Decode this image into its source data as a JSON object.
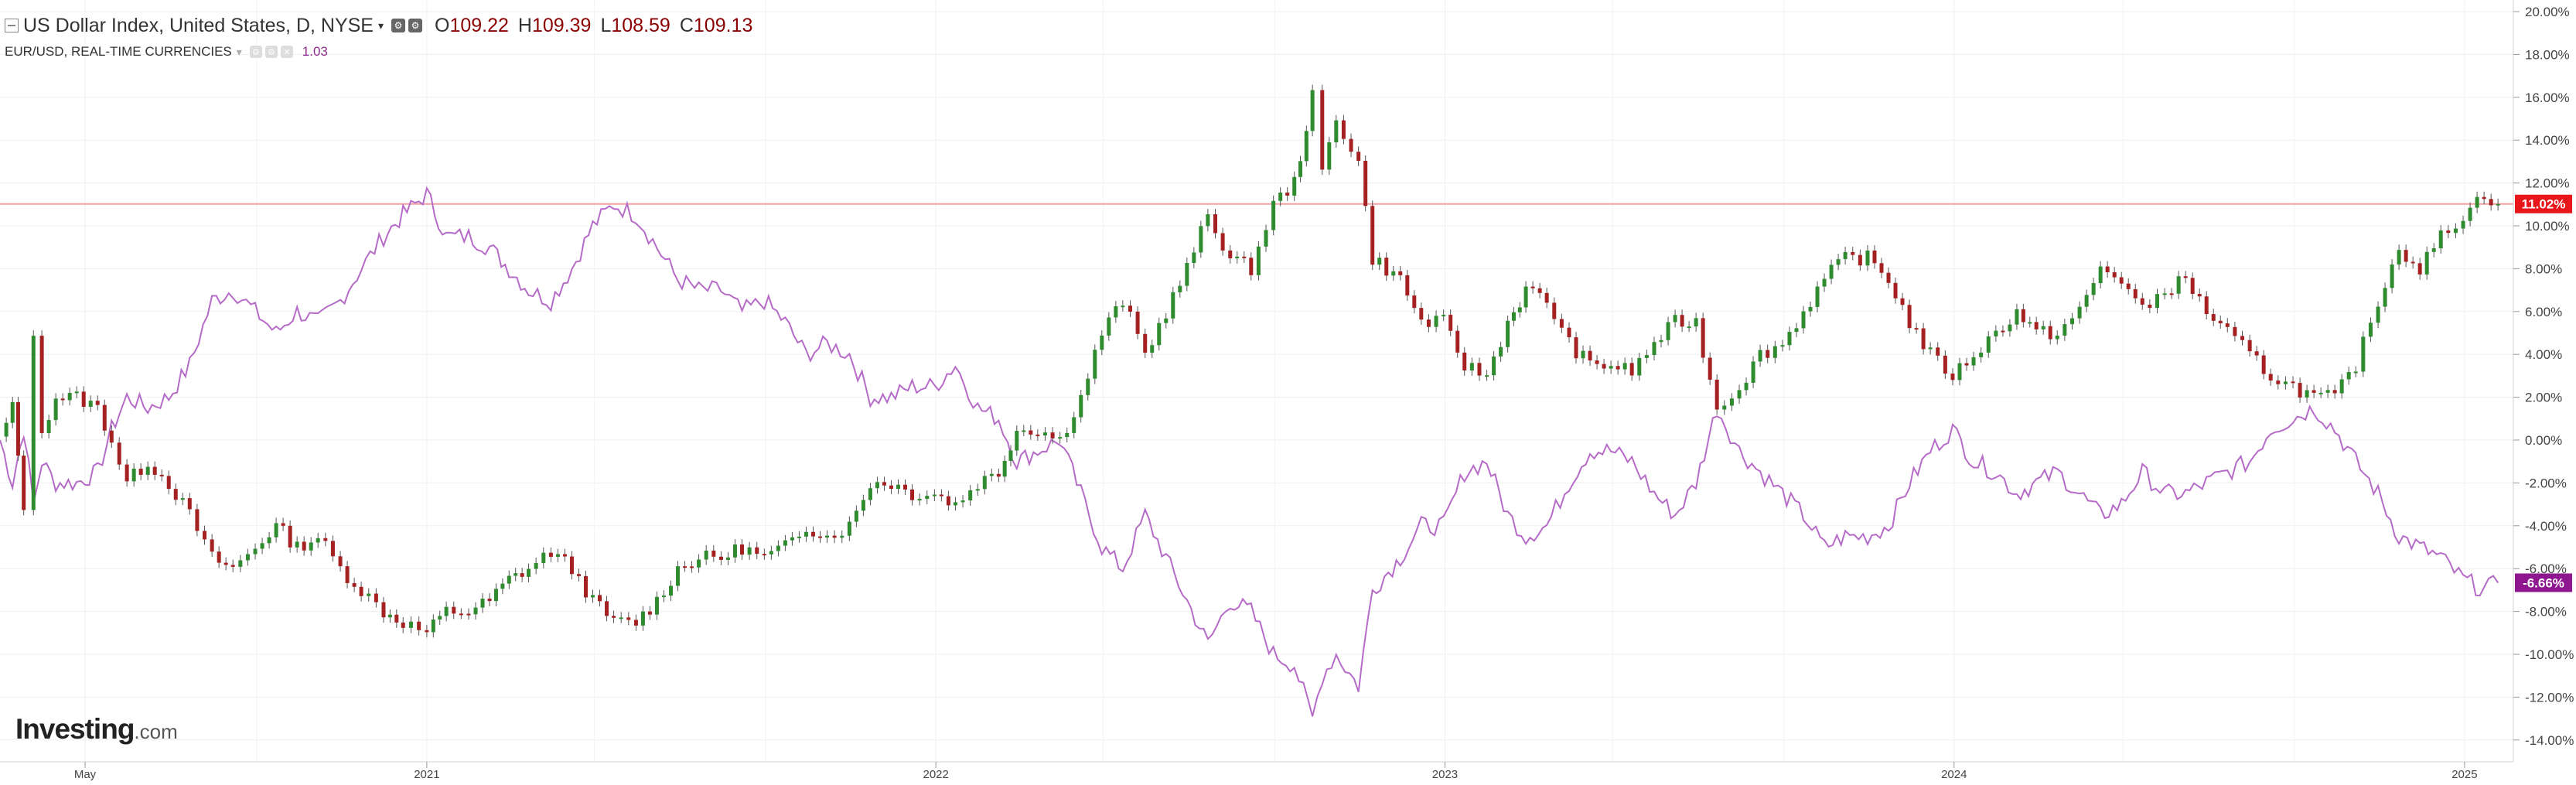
{
  "header": {
    "title": "US Dollar Index, United States, D, NYSE",
    "open_label": "O",
    "open": "109.22",
    "high_label": "H",
    "high": "109.39",
    "low_label": "L",
    "low": "108.59",
    "close_label": "C",
    "close": "109.13",
    "caret": "▾"
  },
  "sub_header": {
    "title": "EUR/USD, REAL-TIME CURRENCIES",
    "value": "1.03",
    "caret": "▾"
  },
  "logo": {
    "main": "Investing",
    "sub": ".com"
  },
  "chart_data": {
    "type": "line",
    "y_axis": {
      "position": "right",
      "unit": "%",
      "ylim": [
        -15,
        20
      ],
      "ticks": [
        20,
        18,
        16,
        14,
        12,
        10,
        8,
        6,
        4,
        2,
        0,
        -2,
        -4,
        -6,
        -8,
        -10,
        -12,
        -14
      ],
      "tick_labels": [
        "20.00%",
        "18.00%",
        "16.00%",
        "14.00%",
        "12.00%",
        "10.00%",
        "8.00%",
        "6.00%",
        "4.00%",
        "2.00%",
        "0.00%",
        "-2.00%",
        "-4.00%",
        "-6.00%",
        "-8.00%",
        "-10.00%",
        "-12.00%",
        "-14.00%"
      ]
    },
    "x_axis": {
      "tick_labels": [
        {
          "date": "2020-05-01",
          "label": "May"
        },
        {
          "date": "2021-01-01",
          "label": "2021"
        },
        {
          "date": "2022-01-01",
          "label": "2022"
        },
        {
          "date": "2023-01-01",
          "label": "2023"
        },
        {
          "date": "2024-01-01",
          "label": "2024"
        },
        {
          "date": "2025-01-01",
          "label": "2025"
        }
      ],
      "xlim": [
        "2020-03-01",
        "2025-02-05"
      ],
      "minor_gridlines": [
        "2020-09-01",
        "2021-05-01",
        "2021-09-01",
        "2022-05-01",
        "2022-09-01",
        "2023-05-01",
        "2023-09-01",
        "2024-05-01",
        "2024-09-01"
      ]
    },
    "grid": true,
    "series": [
      {
        "name": "US Dollar Index, United States, D, NYSE",
        "style": "candlestick",
        "up_color": "#2e8b2e",
        "down_color": "#a52020",
        "last_value_label": "11.02%",
        "last_value": 11.02,
        "badge_color": "#e8161a",
        "points": [
          [
            "2020-03-01",
            0
          ],
          [
            "2020-03-10",
            1.5
          ],
          [
            "2020-03-18",
            -3.0
          ],
          [
            "2020-03-25",
            4.6
          ],
          [
            "2020-03-31",
            0.5
          ],
          [
            "2020-04-10",
            2.0
          ],
          [
            "2020-04-25",
            2.0
          ],
          [
            "2020-05-10",
            1.5
          ],
          [
            "2020-05-20",
            0
          ],
          [
            "2020-05-31",
            -2.0
          ],
          [
            "2020-06-15",
            -1.0
          ],
          [
            "2020-06-30",
            -2.0
          ],
          [
            "2020-07-15",
            -3.5
          ],
          [
            "2020-07-31",
            -5.5
          ],
          [
            "2020-08-15",
            -6.0
          ],
          [
            "2020-08-31",
            -5.0
          ],
          [
            "2020-09-15",
            -4.0
          ],
          [
            "2020-09-30",
            -5.0
          ],
          [
            "2020-10-15",
            -4.5
          ],
          [
            "2020-10-31",
            -6.0
          ],
          [
            "2020-11-15",
            -7.0
          ],
          [
            "2020-12-01",
            -8.0
          ],
          [
            "2020-12-15",
            -8.5
          ],
          [
            "2021-01-01",
            -9.0
          ],
          [
            "2021-01-15",
            -8.0
          ],
          [
            "2021-01-31",
            -8.0
          ],
          [
            "2021-02-15",
            -7.5
          ],
          [
            "2021-03-01",
            -6.5
          ],
          [
            "2021-03-15",
            -6.0
          ],
          [
            "2021-03-31",
            -5.2
          ],
          [
            "2021-04-15",
            -6.0
          ],
          [
            "2021-04-30",
            -7.5
          ],
          [
            "2021-05-15",
            -8.5
          ],
          [
            "2021-05-31",
            -8.5
          ],
          [
            "2021-06-15",
            -7.5
          ],
          [
            "2021-06-30",
            -6.0
          ],
          [
            "2021-07-15",
            -5.5
          ],
          [
            "2021-07-31",
            -5.5
          ],
          [
            "2021-08-15",
            -5.0
          ],
          [
            "2021-08-31",
            -5.5
          ],
          [
            "2021-09-15",
            -5.0
          ],
          [
            "2021-09-30",
            -4.0
          ],
          [
            "2021-10-15",
            -4.5
          ],
          [
            "2021-10-31",
            -4.0
          ],
          [
            "2021-11-15",
            -2.0
          ],
          [
            "2021-11-30",
            -2.0
          ],
          [
            "2021-12-15",
            -2.5
          ],
          [
            "2021-12-31",
            -2.5
          ],
          [
            "2022-01-15",
            -3.0
          ],
          [
            "2022-01-31",
            -2.0
          ],
          [
            "2022-02-15",
            -1.5
          ],
          [
            "2022-02-28",
            0.5
          ],
          [
            "2022-03-15",
            0.5
          ],
          [
            "2022-03-31",
            0
          ],
          [
            "2022-04-15",
            2.0
          ],
          [
            "2022-04-30",
            5.0
          ],
          [
            "2022-05-15",
            6.5
          ],
          [
            "2022-05-31",
            4.0
          ],
          [
            "2022-06-15",
            6.0
          ],
          [
            "2022-06-30",
            8.0
          ],
          [
            "2022-07-15",
            10.5
          ],
          [
            "2022-07-31",
            8.5
          ],
          [
            "2022-08-15",
            8.0
          ],
          [
            "2022-08-31",
            11.0
          ],
          [
            "2022-09-15",
            12.0
          ],
          [
            "2022-09-28",
            16.0
          ],
          [
            "2022-10-05",
            12.5
          ],
          [
            "2022-10-15",
            15.0
          ],
          [
            "2022-10-31",
            13.0
          ],
          [
            "2022-11-10",
            8.5
          ],
          [
            "2022-11-30",
            7.5
          ],
          [
            "2022-12-15",
            5.5
          ],
          [
            "2022-12-31",
            5.5
          ],
          [
            "2023-01-15",
            3.5
          ],
          [
            "2023-01-31",
            3.0
          ],
          [
            "2023-02-15",
            5.5
          ],
          [
            "2023-02-28",
            7.0
          ],
          [
            "2023-03-15",
            6.5
          ],
          [
            "2023-03-31",
            4.5
          ],
          [
            "2023-04-15",
            3.5
          ],
          [
            "2023-04-30",
            3.5
          ],
          [
            "2023-05-15",
            3.2
          ],
          [
            "2023-05-31",
            4.5
          ],
          [
            "2023-06-15",
            5.5
          ],
          [
            "2023-06-30",
            5.5
          ],
          [
            "2023-07-15",
            1.5
          ],
          [
            "2023-07-31",
            2.5
          ],
          [
            "2023-08-15",
            4.0
          ],
          [
            "2023-08-31",
            4.5
          ],
          [
            "2023-09-15",
            6.0
          ],
          [
            "2023-09-30",
            7.5
          ],
          [
            "2023-10-15",
            8.5
          ],
          [
            "2023-10-31",
            8.5
          ],
          [
            "2023-11-15",
            7.5
          ],
          [
            "2023-11-30",
            5.5
          ],
          [
            "2023-12-15",
            4.0
          ],
          [
            "2023-12-31",
            3.0
          ],
          [
            "2024-01-15",
            4.0
          ],
          [
            "2024-01-31",
            5.0
          ],
          [
            "2024-02-15",
            6.0
          ],
          [
            "2024-02-29",
            5.0
          ],
          [
            "2024-03-15",
            5.0
          ],
          [
            "2024-03-31",
            6.0
          ],
          [
            "2024-04-15",
            8.0
          ],
          [
            "2024-04-30",
            7.5
          ],
          [
            "2024-05-15",
            6.0
          ],
          [
            "2024-05-31",
            7.0
          ],
          [
            "2024-06-15",
            7.5
          ],
          [
            "2024-06-30",
            6.0
          ],
          [
            "2024-07-15",
            5.0
          ],
          [
            "2024-07-31",
            4.0
          ],
          [
            "2024-08-15",
            3.0
          ],
          [
            "2024-08-31",
            2.5
          ],
          [
            "2024-09-15",
            2.0
          ],
          [
            "2024-09-30",
            2.0
          ],
          [
            "2024-10-15",
            3.5
          ],
          [
            "2024-10-31",
            6.5
          ],
          [
            "2024-11-15",
            9.0
          ],
          [
            "2024-11-30",
            8.0
          ],
          [
            "2024-12-15",
            9.5
          ],
          [
            "2024-12-31",
            10.5
          ],
          [
            "2025-01-15",
            11.5
          ],
          [
            "2025-01-25",
            11.02
          ]
        ]
      },
      {
        "name": "EUR/USD, REAL-TIME CURRENCIES",
        "style": "line",
        "color": "#b56bc7",
        "last_value_label": "-6.66%",
        "last_value": -6.66,
        "badge_color": "#8e168e",
        "points": [
          [
            "2020-03-01",
            0
          ],
          [
            "2020-03-10",
            -2.0
          ],
          [
            "2020-03-18",
            0.5
          ],
          [
            "2020-03-25",
            -3.0
          ],
          [
            "2020-03-31",
            -1.0
          ],
          [
            "2020-04-10",
            -2.0
          ],
          [
            "2020-04-25",
            -2.0
          ],
          [
            "2020-05-10",
            -1.5
          ],
          [
            "2020-05-20",
            0.5
          ],
          [
            "2020-05-31",
            2.0
          ],
          [
            "2020-06-15",
            1.5
          ],
          [
            "2020-06-30",
            2.0
          ],
          [
            "2020-07-15",
            3.5
          ],
          [
            "2020-07-31",
            6.5
          ],
          [
            "2020-08-15",
            7.0
          ],
          [
            "2020-08-31",
            6.0
          ],
          [
            "2020-09-15",
            5.0
          ],
          [
            "2020-09-30",
            6.0
          ],
          [
            "2020-10-15",
            5.5
          ],
          [
            "2020-10-31",
            6.5
          ],
          [
            "2020-11-15",
            8.0
          ],
          [
            "2020-12-01",
            9.5
          ],
          [
            "2020-12-15",
            10.5
          ],
          [
            "2021-01-01",
            11.5
          ],
          [
            "2021-01-15",
            9.5
          ],
          [
            "2021-01-31",
            9.5
          ],
          [
            "2021-02-15",
            9.0
          ],
          [
            "2021-03-01",
            8.0
          ],
          [
            "2021-03-15",
            7.0
          ],
          [
            "2021-03-31",
            6.5
          ],
          [
            "2021-04-15",
            8.0
          ],
          [
            "2021-04-30",
            10.0
          ],
          [
            "2021-05-15",
            11.0
          ],
          [
            "2021-05-31",
            10.5
          ],
          [
            "2021-06-15",
            9.0
          ],
          [
            "2021-06-30",
            7.5
          ],
          [
            "2021-07-15",
            7.0
          ],
          [
            "2021-07-31",
            7.0
          ],
          [
            "2021-08-15",
            6.0
          ],
          [
            "2021-08-31",
            6.5
          ],
          [
            "2021-09-15",
            5.5
          ],
          [
            "2021-09-30",
            4.0
          ],
          [
            "2021-10-15",
            4.5
          ],
          [
            "2021-10-31",
            4.0
          ],
          [
            "2021-11-15",
            2.0
          ],
          [
            "2021-11-30",
            2.0
          ],
          [
            "2021-12-15",
            2.5
          ],
          [
            "2021-12-31",
            2.5
          ],
          [
            "2022-01-15",
            3.5
          ],
          [
            "2022-01-31",
            1.5
          ],
          [
            "2022-02-15",
            1.0
          ],
          [
            "2022-02-28",
            -1.0
          ],
          [
            "2022-03-15",
            -0.5
          ],
          [
            "2022-03-31",
            0
          ],
          [
            "2022-04-15",
            -2.5
          ],
          [
            "2022-04-30",
            -5.0
          ],
          [
            "2022-05-15",
            -6.0
          ],
          [
            "2022-05-31",
            -3.5
          ],
          [
            "2022-06-15",
            -5.5
          ],
          [
            "2022-06-30",
            -7.5
          ],
          [
            "2022-07-15",
            -9.5
          ],
          [
            "2022-07-31",
            -7.5
          ],
          [
            "2022-08-15",
            -8.0
          ],
          [
            "2022-08-31",
            -10.0
          ],
          [
            "2022-09-15",
            -10.5
          ],
          [
            "2022-09-28",
            -13.0
          ],
          [
            "2022-10-05",
            -11.0
          ],
          [
            "2022-10-15",
            -10.0
          ],
          [
            "2022-10-31",
            -11.5
          ],
          [
            "2022-11-10",
            -7.0
          ],
          [
            "2022-11-30",
            -5.5
          ],
          [
            "2022-12-15",
            -4.0
          ],
          [
            "2022-12-31",
            -4.0
          ],
          [
            "2023-01-15",
            -1.5
          ],
          [
            "2023-01-31",
            -1.0
          ],
          [
            "2023-02-15",
            -3.5
          ],
          [
            "2023-02-28",
            -4.5
          ],
          [
            "2023-03-15",
            -4.0
          ],
          [
            "2023-03-31",
            -2.0
          ],
          [
            "2023-04-15",
            -0.5
          ],
          [
            "2023-04-30",
            -0.5
          ],
          [
            "2023-05-15",
            -1.0
          ],
          [
            "2023-05-31",
            -2.5
          ],
          [
            "2023-06-15",
            -3.5
          ],
          [
            "2023-06-30",
            -2.0
          ],
          [
            "2023-07-15",
            1.5
          ],
          [
            "2023-07-31",
            -0.5
          ],
          [
            "2023-08-15",
            -1.5
          ],
          [
            "2023-08-31",
            -2.5
          ],
          [
            "2023-09-15",
            -3.5
          ],
          [
            "2023-09-30",
            -5.0
          ],
          [
            "2023-10-15",
            -4.5
          ],
          [
            "2023-10-31",
            -4.5
          ],
          [
            "2023-11-15",
            -4.0
          ],
          [
            "2023-11-30",
            -2.0
          ],
          [
            "2023-12-15",
            -0.5
          ],
          [
            "2023-12-31",
            0.5
          ],
          [
            "2024-01-15",
            -1.0
          ],
          [
            "2024-01-31",
            -1.5
          ],
          [
            "2024-02-15",
            -2.5
          ],
          [
            "2024-02-29",
            -2.0
          ],
          [
            "2024-03-15",
            -1.5
          ],
          [
            "2024-03-31",
            -2.5
          ],
          [
            "2024-04-15",
            -3.5
          ],
          [
            "2024-04-30",
            -3.0
          ],
          [
            "2024-05-15",
            -1.5
          ],
          [
            "2024-05-31",
            -2.5
          ],
          [
            "2024-06-15",
            -2.5
          ],
          [
            "2024-06-30",
            -2.0
          ],
          [
            "2024-07-15",
            -1.5
          ],
          [
            "2024-07-31",
            -1.0
          ],
          [
            "2024-08-15",
            0.5
          ],
          [
            "2024-08-31",
            1.0
          ],
          [
            "2024-09-15",
            1.5
          ],
          [
            "2024-09-30",
            0.5
          ],
          [
            "2024-10-15",
            -1.0
          ],
          [
            "2024-10-31",
            -2.5
          ],
          [
            "2024-11-15",
            -4.5
          ],
          [
            "2024-11-30",
            -5.0
          ],
          [
            "2024-12-15",
            -5.5
          ],
          [
            "2024-12-31",
            -6.5
          ],
          [
            "2025-01-15",
            -7.0
          ],
          [
            "2025-01-25",
            -6.66
          ]
        ]
      }
    ],
    "reference_line": {
      "value": 11.02,
      "color": "#f4a0a0"
    }
  }
}
